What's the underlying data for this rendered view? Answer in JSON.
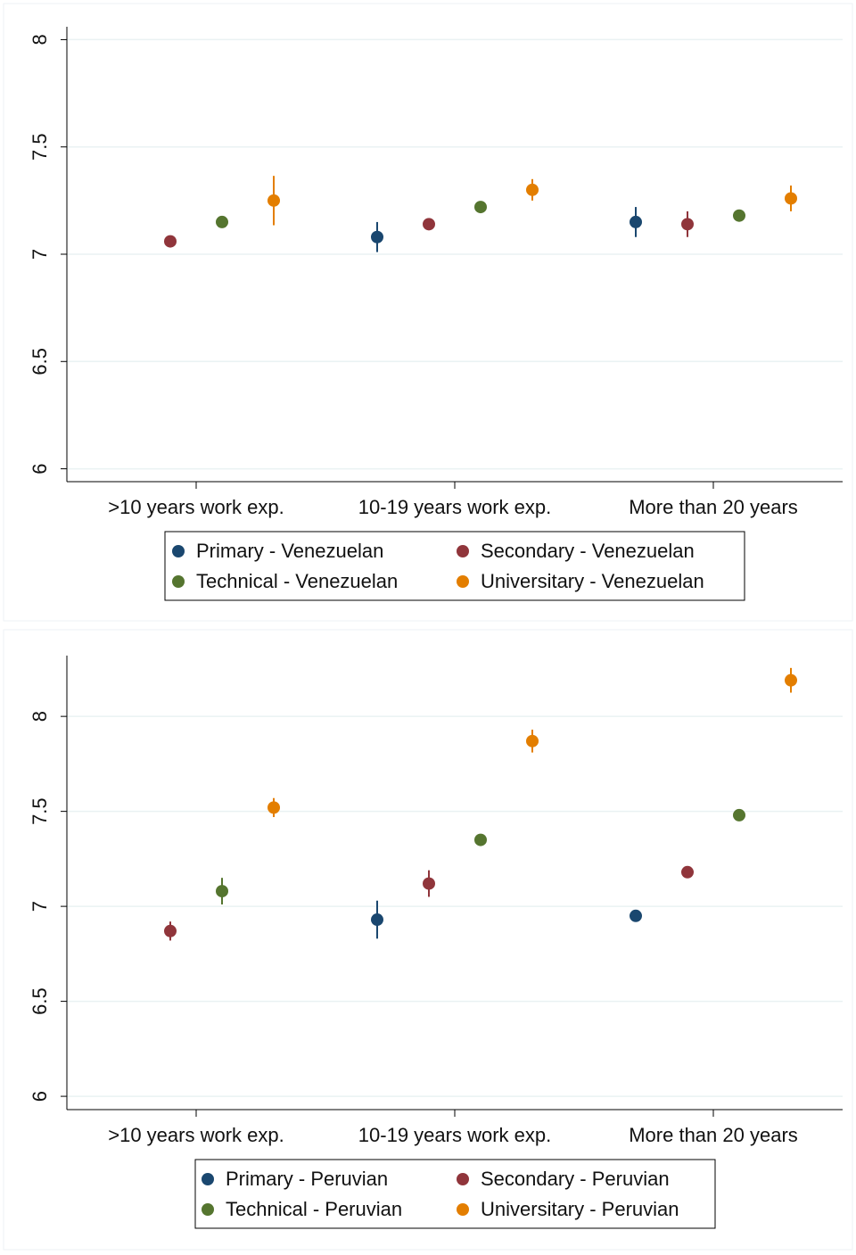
{
  "chart_data": [
    {
      "type": "dot",
      "categories": [
        ">10 years work exp.",
        "10-19 years work exp.",
        "More than 20 years"
      ],
      "ylim": [
        5.94,
        8.06
      ],
      "yticks": [
        6,
        6.5,
        7,
        7.5,
        8
      ],
      "grid": true,
      "series": [
        {
          "name": "Primary - Venezuelan",
          "color": "#1a476f",
          "values": [
            null,
            7.08,
            7.15
          ],
          "errors": [
            null,
            0.07,
            0.07
          ]
        },
        {
          "name": "Secondary - Venezuelan",
          "color": "#90353b",
          "values": [
            7.06,
            7.14,
            7.14
          ],
          "errors": [
            0.02,
            0.01,
            0.06
          ]
        },
        {
          "name": "Technical - Venezuelan",
          "color": "#55752f",
          "values": [
            7.15,
            7.22,
            7.18
          ],
          "errors": [
            0.01,
            0.01,
            0.01
          ]
        },
        {
          "name": "Universitary - Venezuelan",
          "color": "#e37e00",
          "values": [
            7.25,
            7.3,
            7.26
          ],
          "errors": [
            0.115,
            0.05,
            0.06
          ]
        }
      ]
    },
    {
      "type": "dot",
      "categories": [
        ">10 years work exp.",
        "10-19 years work exp.",
        "More than 20 years"
      ],
      "ylim": [
        5.93,
        8.32
      ],
      "yticks": [
        6,
        6.5,
        7,
        7.5,
        8
      ],
      "grid": true,
      "series": [
        {
          "name": "Primary - Peruvian",
          "color": "#1a476f",
          "values": [
            null,
            6.93,
            6.95
          ],
          "errors": [
            null,
            0.1,
            0.02
          ]
        },
        {
          "name": "Secondary - Peruvian",
          "color": "#90353b",
          "values": [
            6.87,
            7.12,
            7.18
          ],
          "errors": [
            0.05,
            0.07,
            0.01
          ]
        },
        {
          "name": "Technical - Peruvian",
          "color": "#55752f",
          "values": [
            7.08,
            7.35,
            7.48
          ],
          "errors": [
            0.07,
            0.02,
            0.01
          ]
        },
        {
          "name": "Universitary - Peruvian",
          "color": "#e37e00",
          "values": [
            7.52,
            7.87,
            8.19
          ],
          "errors": [
            0.05,
            0.06,
            0.065
          ]
        }
      ]
    }
  ]
}
